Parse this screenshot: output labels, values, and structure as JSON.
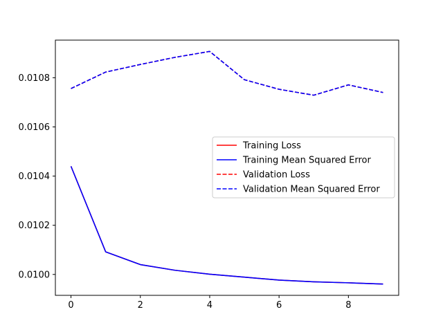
{
  "chart_data": {
    "type": "line",
    "title": "",
    "xlabel": "",
    "ylabel": "",
    "x": [
      0,
      1,
      2,
      3,
      4,
      5,
      6,
      7,
      8,
      9
    ],
    "xlim": [
      -0.45,
      9.45
    ],
    "ylim": [
      0.009915,
      0.010953
    ],
    "xticks": [
      0,
      2,
      4,
      6,
      8
    ],
    "yticks": [
      0.01,
      0.0102,
      0.0104,
      0.0106,
      0.0108
    ],
    "xtick_labels": [
      "0",
      "2",
      "4",
      "6",
      "8"
    ],
    "ytick_labels": [
      "0.0100",
      "0.0102",
      "0.0104",
      "0.0106",
      "0.0108"
    ],
    "grid": false,
    "legend_position": "center-right",
    "series": [
      {
        "name": "Training Loss",
        "color": "#ff0000",
        "style": "solid",
        "values": [
          0.01044,
          0.010092,
          0.01004,
          0.010017,
          0.010001,
          0.009989,
          0.009977,
          0.00997,
          0.009966,
          0.009961
        ]
      },
      {
        "name": "Training Mean Squared Error",
        "color": "#0000ff",
        "style": "solid",
        "values": [
          0.01044,
          0.010092,
          0.01004,
          0.010017,
          0.010001,
          0.009989,
          0.009977,
          0.00997,
          0.009966,
          0.009961
        ]
      },
      {
        "name": "Validation Loss",
        "color": "#ff0000",
        "style": "dashed",
        "values": [
          0.010756,
          0.010823,
          0.010854,
          0.010883,
          0.010907,
          0.010792,
          0.010753,
          0.010729,
          0.010771,
          0.01074
        ]
      },
      {
        "name": "Validation Mean Squared Error",
        "color": "#0000ff",
        "style": "dashed",
        "values": [
          0.010756,
          0.010823,
          0.010854,
          0.010883,
          0.010907,
          0.010792,
          0.010753,
          0.010729,
          0.010771,
          0.01074
        ]
      }
    ]
  }
}
